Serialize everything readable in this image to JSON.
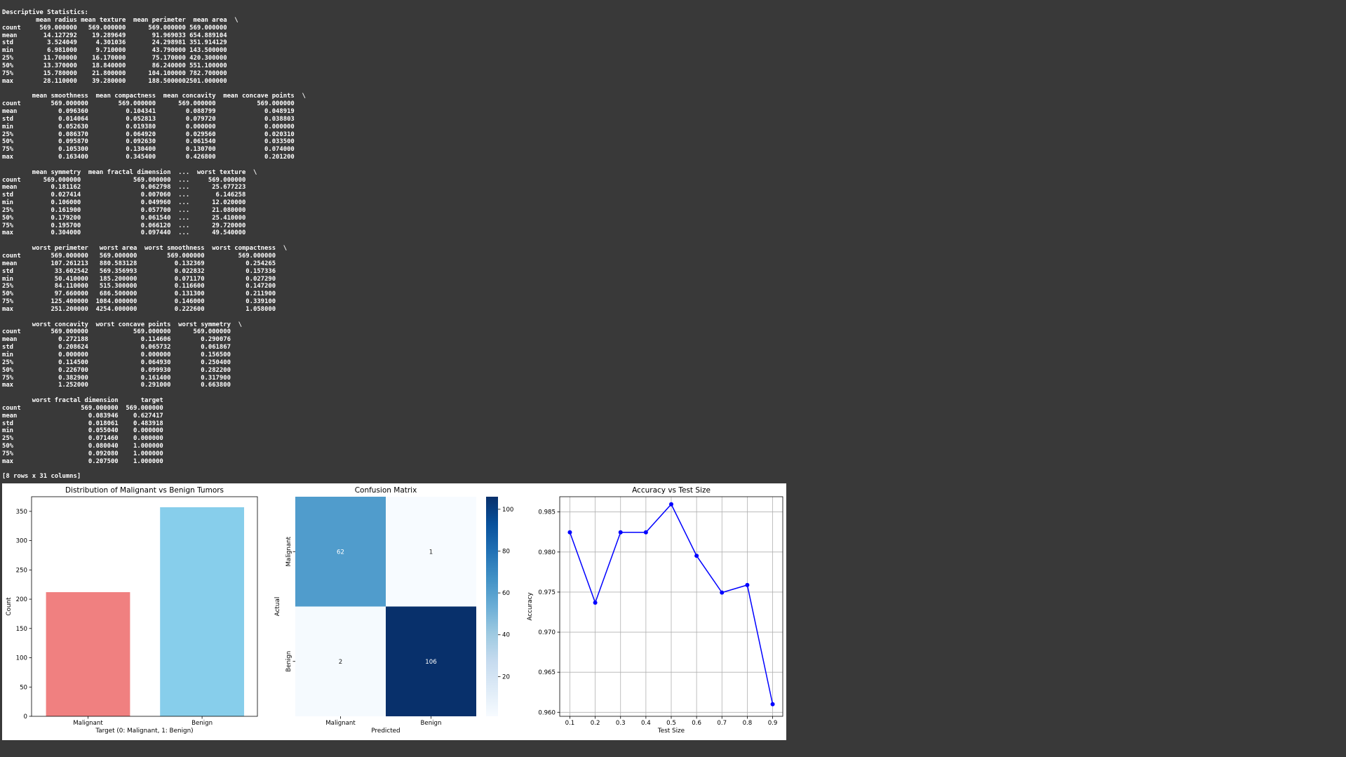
{
  "console": {
    "header": "Descriptive Statistics:",
    "footer": "[8 rows x 31 columns]",
    "blocks": [
      {
        "columns": [
          "mean radius",
          "mean texture",
          "mean perimeter",
          "mean area"
        ],
        "continued": true,
        "widths": [
          6,
          14,
          13,
          16,
          11
        ],
        "rows": [
          [
            "count",
            "569.000000",
            "569.000000",
            "569.000000",
            "569.000000"
          ],
          [
            "mean",
            "14.127292",
            "19.289649",
            "91.969033",
            "654.889104"
          ],
          [
            "std",
            "3.524049",
            "4.301036",
            "24.298981",
            "351.914129"
          ],
          [
            "min",
            "6.981000",
            "9.710000",
            "43.790000",
            "143.500000"
          ],
          [
            "25%",
            "11.700000",
            "16.170000",
            "75.170000",
            "420.300000"
          ],
          [
            "50%",
            "13.370000",
            "18.840000",
            "86.240000",
            "551.100000"
          ],
          [
            "75%",
            "15.780000",
            "21.800000",
            "104.100000",
            "782.700000"
          ],
          [
            "max",
            "28.110000",
            "39.280000",
            "188.500000",
            "2501.000000"
          ]
        ]
      },
      {
        "columns": [
          "mean smoothness",
          "mean compactness",
          "mean concavity",
          "mean concave points"
        ],
        "continued": true,
        "widths": [
          6,
          17,
          18,
          16,
          21
        ],
        "rows": [
          [
            "count",
            "569.000000",
            "569.000000",
            "569.000000",
            "569.000000"
          ],
          [
            "mean",
            "0.096360",
            "0.104341",
            "0.088799",
            "0.048919"
          ],
          [
            "std",
            "0.014064",
            "0.052813",
            "0.079720",
            "0.038803"
          ],
          [
            "min",
            "0.052630",
            "0.019380",
            "0.000000",
            "0.000000"
          ],
          [
            "25%",
            "0.086370",
            "0.064920",
            "0.029560",
            "0.020310"
          ],
          [
            "50%",
            "0.095870",
            "0.092630",
            "0.061540",
            "0.033500"
          ],
          [
            "75%",
            "0.105300",
            "0.130400",
            "0.130700",
            "0.074000"
          ],
          [
            "max",
            "0.163400",
            "0.345400",
            "0.426800",
            "0.201200"
          ]
        ]
      },
      {
        "columns": [
          "mean symmetry",
          "mean fractal dimension",
          "...",
          "worst texture"
        ],
        "continued": true,
        "widths": [
          6,
          15,
          24,
          5,
          15
        ],
        "rows": [
          [
            "count",
            "569.000000",
            "569.000000",
            "...",
            "569.000000"
          ],
          [
            "mean",
            "0.181162",
            "0.062798",
            "...",
            "25.677223"
          ],
          [
            "std",
            "0.027414",
            "0.007060",
            "...",
            "6.146258"
          ],
          [
            "min",
            "0.106000",
            "0.049960",
            "...",
            "12.020000"
          ],
          [
            "25%",
            "0.161900",
            "0.057700",
            "...",
            "21.080000"
          ],
          [
            "50%",
            "0.179200",
            "0.061540",
            "...",
            "25.410000"
          ],
          [
            "75%",
            "0.195700",
            "0.066120",
            "...",
            "29.720000"
          ],
          [
            "max",
            "0.304000",
            "0.097440",
            "...",
            "49.540000"
          ]
        ]
      },
      {
        "columns": [
          "worst perimeter",
          "worst area",
          "worst smoothness",
          "worst compactness"
        ],
        "continued": true,
        "widths": [
          6,
          17,
          13,
          18,
          19
        ],
        "rows": [
          [
            "count",
            "569.000000",
            "569.000000",
            "569.000000",
            "569.000000"
          ],
          [
            "mean",
            "107.261213",
            "880.583128",
            "0.132369",
            "0.254265"
          ],
          [
            "std",
            "33.602542",
            "569.356993",
            "0.022832",
            "0.157336"
          ],
          [
            "min",
            "50.410000",
            "185.200000",
            "0.071170",
            "0.027290"
          ],
          [
            "25%",
            "84.110000",
            "515.300000",
            "0.116600",
            "0.147200"
          ],
          [
            "50%",
            "97.660000",
            "686.500000",
            "0.131300",
            "0.211900"
          ],
          [
            "75%",
            "125.400000",
            "1084.000000",
            "0.146000",
            "0.339100"
          ],
          [
            "max",
            "251.200000",
            "4254.000000",
            "0.222600",
            "1.058000"
          ]
        ]
      },
      {
        "columns": [
          "worst concavity",
          "worst concave points",
          "worst symmetry"
        ],
        "continued": true,
        "widths": [
          6,
          17,
          22,
          16
        ],
        "rows": [
          [
            "count",
            "569.000000",
            "569.000000",
            "569.000000"
          ],
          [
            "mean",
            "0.272188",
            "0.114606",
            "0.290076"
          ],
          [
            "std",
            "0.208624",
            "0.065732",
            "0.061867"
          ],
          [
            "min",
            "0.000000",
            "0.000000",
            "0.156500"
          ],
          [
            "25%",
            "0.114500",
            "0.064930",
            "0.250400"
          ],
          [
            "50%",
            "0.226700",
            "0.099930",
            "0.282200"
          ],
          [
            "75%",
            "0.382900",
            "0.161400",
            "0.317900"
          ],
          [
            "max",
            "1.252000",
            "0.291000",
            "0.663800"
          ]
        ]
      },
      {
        "columns": [
          "worst fractal dimension",
          "target"
        ],
        "continued": false,
        "widths": [
          6,
          25,
          12
        ],
        "rows": [
          [
            "count",
            "569.000000",
            "569.000000"
          ],
          [
            "mean",
            "0.083946",
            "0.627417"
          ],
          [
            "std",
            "0.018061",
            "0.483918"
          ],
          [
            "min",
            "0.055040",
            "0.000000"
          ],
          [
            "25%",
            "0.071460",
            "0.000000"
          ],
          [
            "50%",
            "0.080040",
            "1.000000"
          ],
          [
            "75%",
            "0.092080",
            "1.000000"
          ],
          [
            "max",
            "0.207500",
            "1.000000"
          ]
        ]
      }
    ]
  },
  "chart_data": [
    {
      "type": "bar",
      "title": "Distribution of Malignant vs Benign Tumors",
      "xlabel": "Target (0: Malignant, 1: Benign)",
      "ylabel": "Count",
      "categories": [
        "Malignant",
        "Benign"
      ],
      "values": [
        212,
        357
      ],
      "colors": [
        "#f08080",
        "#87ceeb"
      ],
      "ylim": [
        0,
        375
      ],
      "yticks": [
        0,
        50,
        100,
        150,
        200,
        250,
        300,
        350
      ],
      "grid": false
    },
    {
      "type": "heatmap",
      "title": "Confusion Matrix",
      "xlabel": "Predicted",
      "ylabel": "Actual",
      "x_categories": [
        "Malignant",
        "Benign"
      ],
      "y_categories": [
        "Malignant",
        "Benign"
      ],
      "values": [
        [
          62,
          1
        ],
        [
          2,
          106
        ]
      ],
      "colormap": "Blues",
      "colorbar_range": [
        1,
        106
      ],
      "colorbar_ticks": [
        20,
        40,
        60,
        80,
        100
      ],
      "annotated": true
    },
    {
      "type": "line",
      "title": "Accuracy vs Test Size",
      "xlabel": "Test Size",
      "ylabel": "Accuracy",
      "x": [
        0.1,
        0.2,
        0.3,
        0.4,
        0.5,
        0.6,
        0.7,
        0.8,
        0.9
      ],
      "y": [
        0.98246,
        0.97368,
        0.98246,
        0.98246,
        0.98596,
        0.97953,
        0.97494,
        0.97588,
        0.96101
      ],
      "xlim": [
        0.06,
        0.94
      ],
      "ylim": [
        0.9595,
        0.9869
      ],
      "xticks": [
        0.1,
        0.2,
        0.3,
        0.4,
        0.5,
        0.6,
        0.7,
        0.8,
        0.9
      ],
      "yticks": [
        0.96,
        0.965,
        0.97,
        0.975,
        0.98,
        0.985
      ],
      "color": "#0000ff",
      "marker": "o",
      "grid": true
    }
  ]
}
